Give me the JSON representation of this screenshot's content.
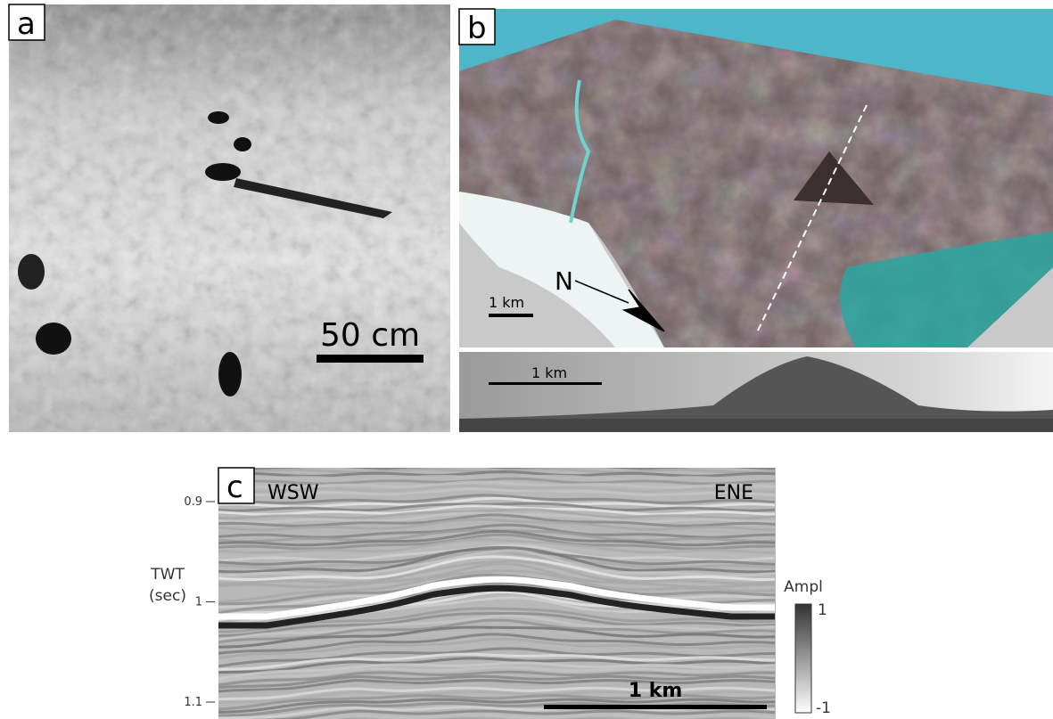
{
  "panel_a": {
    "label": "a",
    "scale_bar": "50 cm"
  },
  "panel_b": {
    "label": "b",
    "map_scale_bar": "1 km",
    "north": "N",
    "profile_scale_bar": "1 km"
  },
  "panel_c": {
    "label": "c",
    "left_direction": "WSW",
    "right_direction": "ENE",
    "scale_bar": "1 km",
    "y_axis": {
      "label": "TWT",
      "unit": "(sec)",
      "ticks": [
        0.9,
        1,
        1.1
      ]
    },
    "colorbar": {
      "label": "Ampl",
      "max": 1,
      "min": -1
    }
  }
}
